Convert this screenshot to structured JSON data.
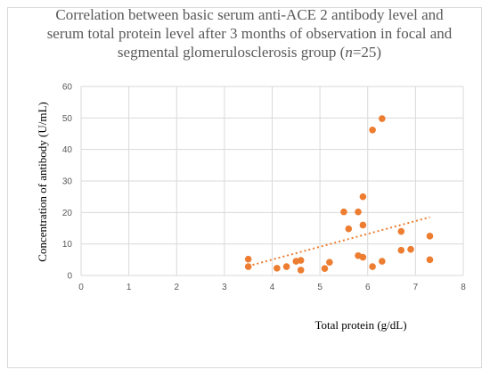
{
  "chart_data": {
    "type": "scatter",
    "title_parts": [
      "Correlation between basic serum anti-ACE 2 antibody level and serum total protein level after 3 months of observation in focal and segmental glomerulosclerosis group (",
      "n",
      "=25)"
    ],
    "xlabel": "Total protein (g/dL)",
    "ylabel": "Concentration of antibody (U/mL)",
    "xlim": [
      0,
      8
    ],
    "ylim": [
      0,
      60
    ],
    "x_ticks": [
      "0",
      "1",
      "2",
      "3",
      "4",
      "5",
      "6",
      "7",
      "8"
    ],
    "y_ticks": [
      "0",
      "10",
      "20",
      "30",
      "40",
      "50",
      "60"
    ],
    "grid": true,
    "legend": "none",
    "marker_color": "#ED7D31",
    "trendline": {
      "type": "linear",
      "style": "dotted",
      "color": "#ED7D31",
      "from": [
        3.5,
        3.0
      ],
      "to": [
        7.3,
        18.5
      ]
    },
    "points": [
      {
        "x": 3.5,
        "y": 5.2
      },
      {
        "x": 3.5,
        "y": 2.8
      },
      {
        "x": 4.1,
        "y": 2.3
      },
      {
        "x": 4.3,
        "y": 2.8
      },
      {
        "x": 4.5,
        "y": 4.5
      },
      {
        "x": 4.6,
        "y": 4.8
      },
      {
        "x": 4.6,
        "y": 1.7
      },
      {
        "x": 5.1,
        "y": 2.2
      },
      {
        "x": 5.2,
        "y": 4.2
      },
      {
        "x": 5.5,
        "y": 20.2
      },
      {
        "x": 5.6,
        "y": 14.8
      },
      {
        "x": 5.8,
        "y": 20.2
      },
      {
        "x": 5.8,
        "y": 6.3
      },
      {
        "x": 5.9,
        "y": 25.0
      },
      {
        "x": 5.9,
        "y": 16.0
      },
      {
        "x": 5.9,
        "y": 5.8
      },
      {
        "x": 6.1,
        "y": 46.2
      },
      {
        "x": 6.1,
        "y": 2.8
      },
      {
        "x": 6.3,
        "y": 49.8
      },
      {
        "x": 6.3,
        "y": 4.5
      },
      {
        "x": 6.7,
        "y": 14.0
      },
      {
        "x": 6.7,
        "y": 8.0
      },
      {
        "x": 6.9,
        "y": 8.3
      },
      {
        "x": 7.3,
        "y": 12.5
      },
      {
        "x": 7.3,
        "y": 5.0
      }
    ]
  }
}
